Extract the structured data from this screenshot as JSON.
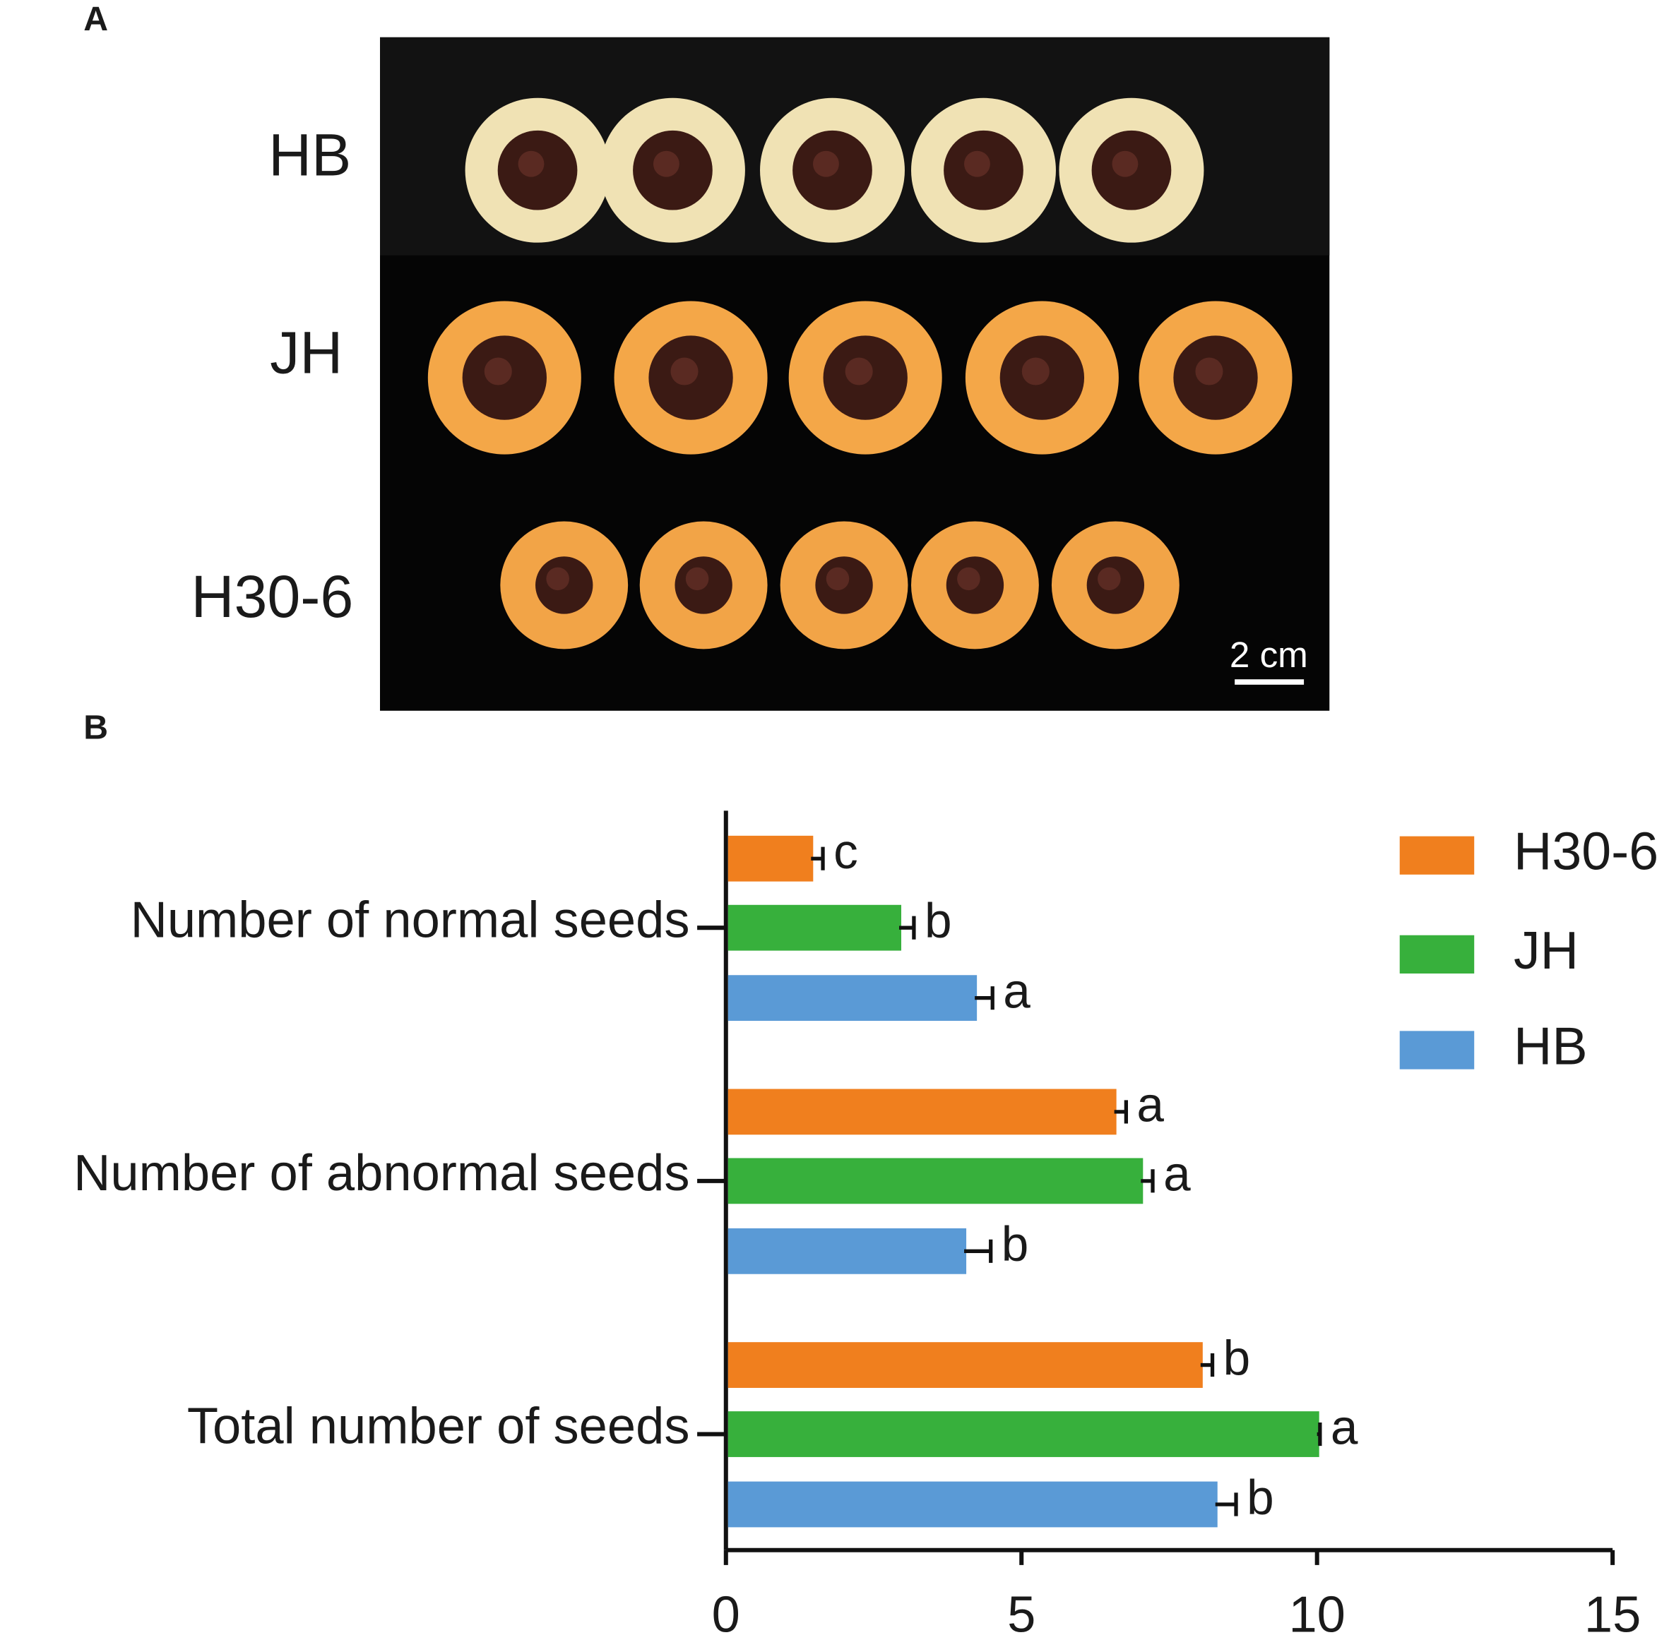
{
  "panel_a": {
    "label": "A",
    "rows": [
      "HB",
      "JH",
      "H30-6"
    ],
    "scale_bar": "2 cm"
  },
  "chart_data": {
    "type": "bar",
    "orientation": "horizontal",
    "panel_label": "B",
    "categories": [
      "Number of normal seeds",
      "Number of abnormal seeds",
      "Total number of seeds"
    ],
    "series": [
      {
        "name": "H30-6",
        "color": "#f07f1e",
        "values": [
          1.44,
          6.57,
          8.03
        ],
        "errors": [
          0.2,
          0.2,
          0.2
        ],
        "letters": [
          "c",
          "a",
          "b"
        ]
      },
      {
        "name": "JH",
        "color": "#37b03c",
        "values": [
          2.93,
          7.02,
          10.0
        ],
        "errors": [
          0.25,
          0.2,
          0.05
        ],
        "letters": [
          "b",
          "a",
          "a"
        ]
      },
      {
        "name": "HB",
        "color": "#5a9ad6",
        "values": [
          4.21,
          4.03,
          8.28
        ],
        "errors": [
          0.3,
          0.45,
          0.35
        ],
        "letters": [
          "a",
          "b",
          "b"
        ]
      }
    ],
    "xlim": [
      0,
      15
    ],
    "xticks": [
      0,
      5,
      10,
      15
    ],
    "legend": "top-right"
  }
}
